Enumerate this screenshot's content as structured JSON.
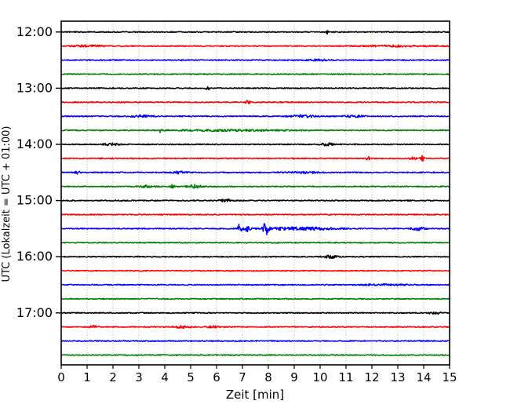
{
  "figure": {
    "xlabel": "Zeit  [min]",
    "ylabel": "UTC (Lokalzeit = UTC + 01:00)"
  },
  "chart_data": {
    "type": "line",
    "subtype": "helicorder-seismogram",
    "title": "",
    "xlabel": "Zeit  [min]",
    "ylabel": "UTC (Lokalzeit = UTC + 01:00)",
    "x_range": [
      0,
      15
    ],
    "x_ticks": [
      {
        "value": 0,
        "label": "0"
      },
      {
        "value": 1,
        "label": "1"
      },
      {
        "value": 2,
        "label": "2"
      },
      {
        "value": 3,
        "label": "3"
      },
      {
        "value": 4,
        "label": "4"
      },
      {
        "value": 5,
        "label": "5"
      },
      {
        "value": 6,
        "label": "6"
      },
      {
        "value": 7,
        "label": "7"
      },
      {
        "value": 8,
        "label": "8"
      },
      {
        "value": 9,
        "label": "9"
      },
      {
        "value": 10,
        "label": "10"
      },
      {
        "value": 11,
        "label": "11"
      },
      {
        "value": 12,
        "label": "12"
      },
      {
        "value": 13,
        "label": "13"
      },
      {
        "value": 14,
        "label": "14"
      },
      {
        "value": 15,
        "label": "15"
      }
    ],
    "y_ticks": [
      {
        "row": 0,
        "label": "12:00"
      },
      {
        "row": 4,
        "label": "13:00"
      },
      {
        "row": 8,
        "label": "14:00"
      },
      {
        "row": 12,
        "label": "15:00"
      },
      {
        "row": 16,
        "label": "16:00"
      },
      {
        "row": 20,
        "label": "17:00"
      }
    ],
    "grid": {
      "vertical_dotted_every_minute": true,
      "horizontal": false
    },
    "legend": null,
    "colors": {
      "black": "#000000",
      "red": "#ff0000",
      "blue": "#0000ff",
      "green": "#007f00"
    },
    "minutes_per_row": 15,
    "rows": [
      {
        "time": "12:00",
        "color": "black",
        "events": [
          {
            "t": 10.3,
            "w": 0.06,
            "a": 3.0
          }
        ]
      },
      {
        "time": "12:15",
        "color": "red",
        "events": [
          {
            "t": 1.0,
            "w": 0.6,
            "a": 1.0
          },
          {
            "t": 12.8,
            "w": 1.2,
            "a": 0.8
          }
        ]
      },
      {
        "time": "12:30",
        "color": "blue",
        "events": [
          {
            "t": 9.9,
            "w": 0.35,
            "a": 1.1
          }
        ]
      },
      {
        "time": "12:45",
        "color": "green",
        "events": []
      },
      {
        "time": "13:00",
        "color": "black",
        "events": [
          {
            "t": 5.65,
            "w": 0.07,
            "a": 2.6
          }
        ]
      },
      {
        "time": "13:15",
        "color": "red",
        "events": [
          {
            "t": 7.2,
            "w": 0.1,
            "a": 2.4
          }
        ]
      },
      {
        "time": "13:30",
        "color": "blue",
        "events": [
          {
            "t": 3.2,
            "w": 0.4,
            "a": 1.2
          },
          {
            "t": 9.3,
            "w": 0.5,
            "a": 1.5
          },
          {
            "t": 11.3,
            "w": 0.4,
            "a": 1.2
          }
        ]
      },
      {
        "time": "13:45",
        "color": "green",
        "events": [
          {
            "t": 3.85,
            "w": 0.05,
            "a": 4.2
          },
          {
            "t": 6.5,
            "w": 2.0,
            "a": 0.9
          }
        ]
      },
      {
        "time": "14:00",
        "color": "black",
        "events": [
          {
            "t": 1.9,
            "w": 0.3,
            "a": 1.4
          },
          {
            "t": 10.25,
            "w": 0.25,
            "a": 1.6
          }
        ]
      },
      {
        "time": "14:15",
        "color": "red",
        "events": [
          {
            "t": 11.85,
            "w": 0.05,
            "a": 3.6
          },
          {
            "t": 13.6,
            "w": 0.15,
            "a": 1.4
          },
          {
            "t": 13.95,
            "w": 0.06,
            "a": 3.2
          }
        ]
      },
      {
        "time": "14:30",
        "color": "blue",
        "events": [
          {
            "t": 0.62,
            "w": 0.1,
            "a": 1.8
          },
          {
            "t": 4.6,
            "w": 0.25,
            "a": 1.7
          },
          {
            "t": 9.4,
            "w": 0.6,
            "a": 1.1
          }
        ]
      },
      {
        "time": "14:45",
        "color": "green",
        "events": [
          {
            "t": 3.35,
            "w": 0.3,
            "a": 1.3
          },
          {
            "t": 4.3,
            "w": 0.06,
            "a": 3.6
          },
          {
            "t": 5.15,
            "w": 0.25,
            "a": 2.2
          }
        ]
      },
      {
        "time": "15:00",
        "color": "black",
        "events": [
          {
            "t": 6.35,
            "w": 0.2,
            "a": 2.0
          }
        ]
      },
      {
        "time": "15:15",
        "color": "red",
        "events": []
      },
      {
        "time": "15:30",
        "color": "blue",
        "events": [
          {
            "t": 6.9,
            "w": 0.07,
            "a": 8.5
          },
          {
            "t": 7.2,
            "w": 0.12,
            "a": 3.2
          },
          {
            "t": 7.9,
            "w": 0.1,
            "a": 7.8
          },
          {
            "t": 8.8,
            "w": 1.0,
            "a": 1.5
          },
          {
            "t": 10.2,
            "w": 0.8,
            "a": 1.0
          },
          {
            "t": 13.8,
            "w": 0.25,
            "a": 2.0
          }
        ]
      },
      {
        "time": "15:45",
        "color": "green",
        "events": []
      },
      {
        "time": "16:00",
        "color": "black",
        "events": [
          {
            "t": 10.4,
            "w": 0.3,
            "a": 1.6
          }
        ]
      },
      {
        "time": "16:15",
        "color": "red",
        "events": []
      },
      {
        "time": "16:30",
        "color": "blue",
        "events": [
          {
            "t": 12.5,
            "w": 1.0,
            "a": 0.7
          }
        ]
      },
      {
        "time": "16:45",
        "color": "green",
        "events": []
      },
      {
        "time": "17:00",
        "color": "black",
        "events": [
          {
            "t": 14.45,
            "w": 0.25,
            "a": 1.5
          }
        ]
      },
      {
        "time": "17:15",
        "color": "red",
        "events": [
          {
            "t": 1.25,
            "w": 0.2,
            "a": 1.3
          },
          {
            "t": 4.7,
            "w": 0.3,
            "a": 1.3
          },
          {
            "t": 5.85,
            "w": 0.2,
            "a": 1.2
          }
        ]
      },
      {
        "time": "17:30",
        "color": "blue",
        "events": []
      },
      {
        "time": "17:45",
        "color": "green",
        "events": []
      }
    ]
  }
}
